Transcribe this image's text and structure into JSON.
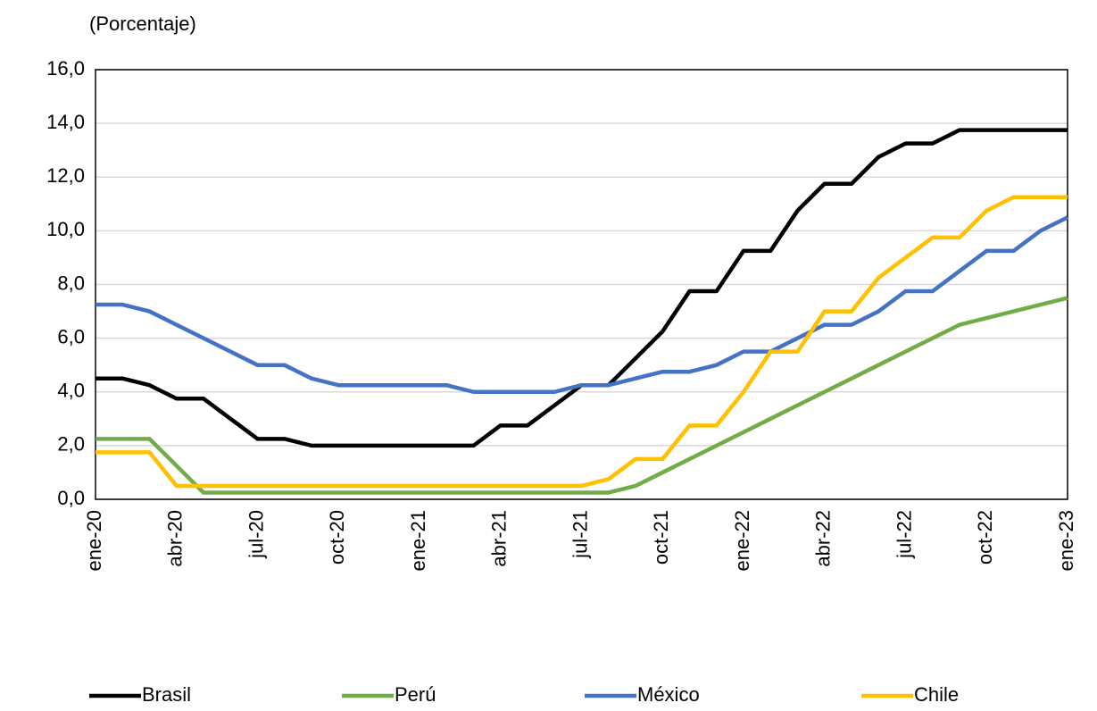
{
  "chart_data": {
    "type": "line",
    "title": "(Porcentaje)",
    "categories": [
      "ene-20",
      null,
      null,
      "abr-20",
      null,
      null,
      "jul-20",
      null,
      null,
      "oct-20",
      null,
      null,
      "ene-21",
      null,
      null,
      "abr-21",
      null,
      null,
      "jul-21",
      null,
      null,
      "oct-21",
      null,
      null,
      "ene-22",
      null,
      null,
      "abr-22",
      null,
      null,
      "jul-22",
      null,
      null,
      "oct-22",
      null,
      null,
      "ene-23"
    ],
    "series": [
      {
        "name": "Brasil",
        "color": "#000000",
        "values": [
          4.5,
          4.5,
          4.25,
          3.75,
          3.75,
          3.0,
          2.25,
          2.25,
          2.0,
          2.0,
          2.0,
          2.0,
          2.0,
          2.0,
          2.0,
          2.75,
          2.75,
          3.5,
          4.25,
          4.25,
          5.25,
          6.25,
          7.75,
          7.75,
          9.25,
          9.25,
          10.75,
          11.75,
          11.75,
          12.75,
          13.25,
          13.25,
          13.75,
          13.75,
          13.75,
          13.75,
          13.75
        ]
      },
      {
        "name": "Perú",
        "color": "#70ad47",
        "values": [
          2.25,
          2.25,
          2.25,
          1.25,
          0.25,
          0.25,
          0.25,
          0.25,
          0.25,
          0.25,
          0.25,
          0.25,
          0.25,
          0.25,
          0.25,
          0.25,
          0.25,
          0.25,
          0.25,
          0.25,
          0.5,
          1.0,
          1.5,
          2.0,
          2.5,
          3.0,
          3.5,
          4.0,
          4.5,
          5.0,
          5.5,
          6.0,
          6.5,
          6.75,
          7.0,
          7.25,
          7.5
        ]
      },
      {
        "name": "México",
        "color": "#4472c4",
        "values": [
          7.25,
          7.25,
          7.0,
          6.5,
          6.0,
          5.5,
          5.0,
          5.0,
          4.5,
          4.25,
          4.25,
          4.25,
          4.25,
          4.25,
          4.0,
          4.0,
          4.0,
          4.0,
          4.25,
          4.25,
          4.5,
          4.75,
          4.75,
          5.0,
          5.5,
          5.5,
          6.0,
          6.5,
          6.5,
          7.0,
          7.75,
          7.75,
          8.5,
          9.25,
          9.25,
          10.0,
          10.5
        ]
      },
      {
        "name": "Chile",
        "color": "#ffc000",
        "values": [
          1.75,
          1.75,
          1.75,
          0.5,
          0.5,
          0.5,
          0.5,
          0.5,
          0.5,
          0.5,
          0.5,
          0.5,
          0.5,
          0.5,
          0.5,
          0.5,
          0.5,
          0.5,
          0.5,
          0.75,
          1.5,
          1.5,
          2.75,
          2.75,
          4.0,
          5.5,
          5.5,
          7.0,
          7.0,
          8.25,
          9.0,
          9.75,
          9.75,
          10.75,
          11.25,
          11.25,
          11.25
        ]
      }
    ],
    "ylim": [
      0,
      16
    ],
    "yticks": [
      {
        "value": 0,
        "label": "0,0"
      },
      {
        "value": 2,
        "label": "2,0"
      },
      {
        "value": 4,
        "label": "4,0"
      },
      {
        "value": 6,
        "label": "6,0"
      },
      {
        "value": 8,
        "label": "8,0"
      },
      {
        "value": 10,
        "label": "10,0"
      },
      {
        "value": 12,
        "label": "12,0"
      },
      {
        "value": 14,
        "label": "14,0"
      },
      {
        "value": 16,
        "label": "16,0"
      }
    ],
    "grid": true,
    "legend": "bottom"
  }
}
